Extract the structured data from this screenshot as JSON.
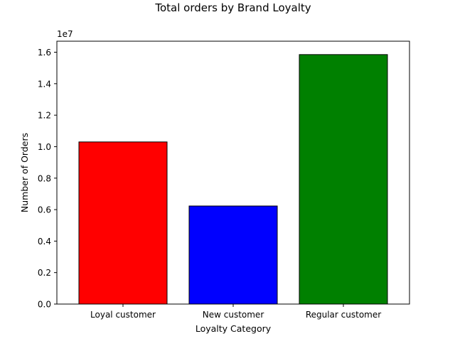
{
  "chart_data": {
    "type": "bar",
    "title": "Total orders by Brand Loyalty",
    "xlabel": "Loyalty Category",
    "ylabel": "Number of Orders",
    "y_offset_label": "1e7",
    "categories": [
      "Loyal customer",
      "New customer",
      "Regular customer"
    ],
    "values": [
      10300000,
      6230000,
      15850000
    ],
    "bar_colors": [
      "#ff0000",
      "#0000ff",
      "#008000"
    ],
    "bar_edge_color": "#000000",
    "ylim": [
      0,
      16700000
    ],
    "y_ticks": [
      0,
      2000000,
      4000000,
      6000000,
      8000000,
      10000000,
      12000000,
      14000000,
      16000000
    ],
    "y_tick_labels": [
      "0.0",
      "0.2",
      "0.4",
      "0.6",
      "0.8",
      "1.0",
      "1.2",
      "1.4",
      "1.6"
    ],
    "grid": false,
    "legend": "none"
  }
}
